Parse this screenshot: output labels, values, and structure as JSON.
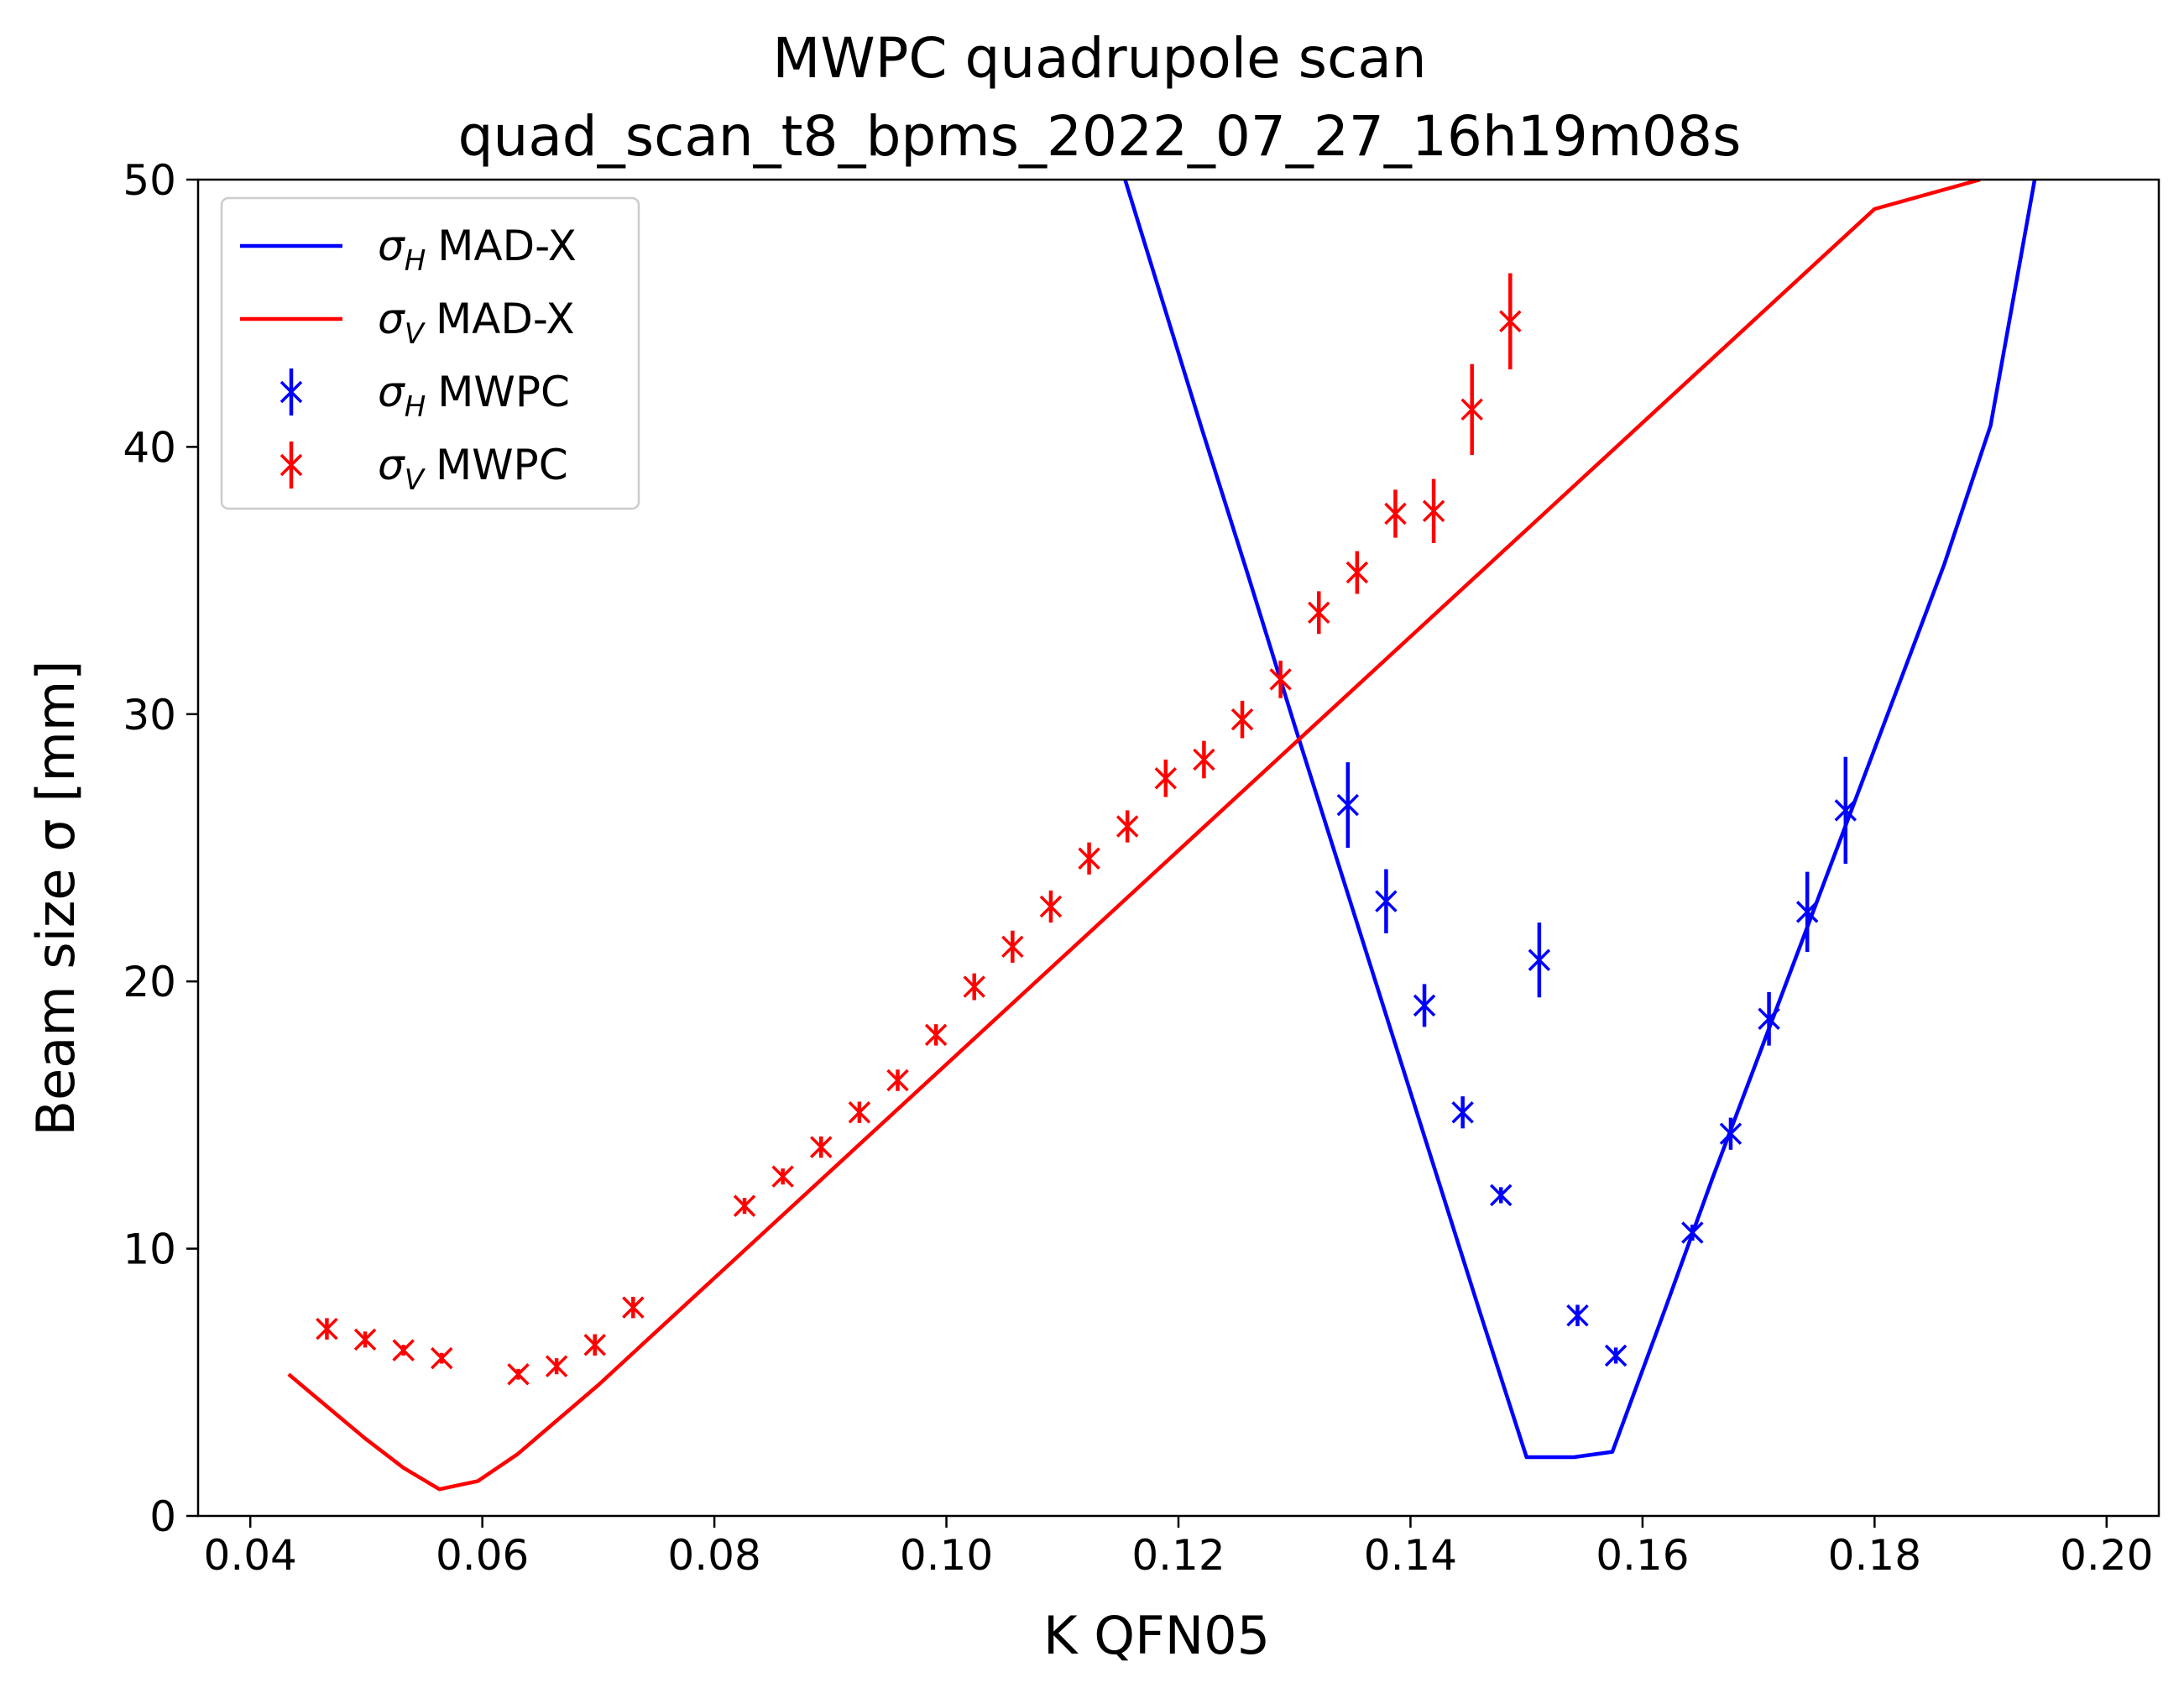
{
  "chart_data": {
    "type": "scatter",
    "title": "MWPC quadrupole scan",
    "subtitle": "quad_scan_t8_bpms_2022_07_27_16h19m08s",
    "xlabel": "K QFN05",
    "ylabel": "Beam size σ [mm]",
    "xlim": [
      0.0355,
      0.2045
    ],
    "ylim": [
      0,
      50
    ],
    "xticks": [
      0.04,
      0.06,
      0.08,
      0.1,
      0.12,
      0.14,
      0.16,
      0.18,
      0.2
    ],
    "xtick_labels": [
      "0.04",
      "0.06",
      "0.08",
      "0.10",
      "0.12",
      "0.14",
      "0.16",
      "0.18",
      "0.20"
    ],
    "yticks": [
      0,
      10,
      20,
      30,
      40,
      50
    ],
    "ytick_labels": [
      "0",
      "10",
      "20",
      "30",
      "40",
      "50"
    ],
    "grid": false,
    "legend_position": "top-left",
    "series": [
      {
        "name": "MAD-X",
        "legend_symbol": "σ",
        "legend_sub": "H",
        "kind": "line",
        "color": "#0000ff",
        "x": [
          0.1154,
          0.122,
          0.126,
          0.13,
          0.134,
          0.138,
          0.142,
          0.146,
          0.15,
          0.1541,
          0.1574,
          0.162,
          0.166,
          0.17,
          0.174,
          0.178,
          0.182,
          0.186,
          0.19,
          0.1938
        ],
        "y": [
          50,
          40.7,
          35.2,
          29.6,
          24.1,
          18.6,
          13.1,
          7.6,
          2.2,
          2.2,
          2.4,
          7.8,
          12.6,
          17.2,
          21.8,
          26.4,
          31.0,
          35.6,
          40.8,
          50
        ]
      },
      {
        "name": "MAD-X",
        "legend_symbol": "σ",
        "legend_sub": "V",
        "kind": "line",
        "color": "#ff0000",
        "x": [
          0.0433,
          0.0466,
          0.0499,
          0.0532,
          0.0563,
          0.0596,
          0.063,
          0.07,
          0.08,
          0.09,
          0.1,
          0.11,
          0.12,
          0.13,
          0.14,
          0.15,
          0.16,
          0.17,
          0.18,
          0.1891
        ],
        "y": [
          5.3,
          4.1,
          2.9,
          1.8,
          1.0,
          1.3,
          2.3,
          4.9,
          8.9,
          12.9,
          16.9,
          20.9,
          24.9,
          28.9,
          32.9,
          36.9,
          40.9,
          44.9,
          48.9,
          50
        ]
      },
      {
        "name": "MWPC",
        "legend_symbol": "σ",
        "legend_sub": "H",
        "kind": "errorbar",
        "color": "#0000ff",
        "x": [
          0.1346,
          0.1379,
          0.1412,
          0.1445,
          0.1478,
          0.1511,
          0.1544,
          0.1577,
          0.1643,
          0.1676,
          0.1709,
          0.1742,
          0.1775
        ],
        "y": [
          26.6,
          23.0,
          19.1,
          15.1,
          12.0,
          20.8,
          7.5,
          6.0,
          10.6,
          14.3,
          18.6,
          22.6,
          26.4
        ],
        "yerr": [
          1.6,
          1.2,
          0.8,
          0.6,
          0.3,
          1.4,
          0.4,
          0.3,
          0.3,
          0.6,
          1.0,
          1.5,
          2.0
        ]
      },
      {
        "name": "MWPC",
        "legend_symbol": "σ",
        "legend_sub": "V",
        "kind": "errorbar",
        "color": "#ff0000",
        "x": [
          0.0466,
          0.0499,
          0.0532,
          0.0565,
          0.0631,
          0.0664,
          0.0697,
          0.073,
          0.0826,
          0.0859,
          0.0892,
          0.0925,
          0.0958,
          0.0991,
          0.1024,
          0.1057,
          0.109,
          0.1123,
          0.1156,
          0.1189,
          0.1222,
          0.1255,
          0.1288,
          0.1321,
          0.1354,
          0.1387,
          0.142,
          0.1453,
          0.1486
        ],
        "y": [
          7.0,
          6.6,
          6.2,
          5.9,
          5.3,
          5.6,
          6.4,
          7.8,
          11.6,
          12.7,
          13.8,
          15.1,
          16.3,
          18.0,
          19.8,
          21.3,
          22.8,
          24.6,
          25.8,
          27.6,
          28.3,
          29.8,
          31.3,
          33.8,
          35.3,
          37.5,
          37.6,
          41.4,
          44.7
        ],
        "yerr": [
          0.4,
          0.3,
          0.2,
          0.2,
          0.2,
          0.3,
          0.4,
          0.4,
          0.3,
          0.3,
          0.4,
          0.4,
          0.4,
          0.4,
          0.5,
          0.6,
          0.6,
          0.6,
          0.6,
          0.7,
          0.7,
          0.7,
          0.7,
          0.8,
          0.8,
          0.9,
          1.2,
          1.7,
          1.8
        ]
      }
    ]
  }
}
